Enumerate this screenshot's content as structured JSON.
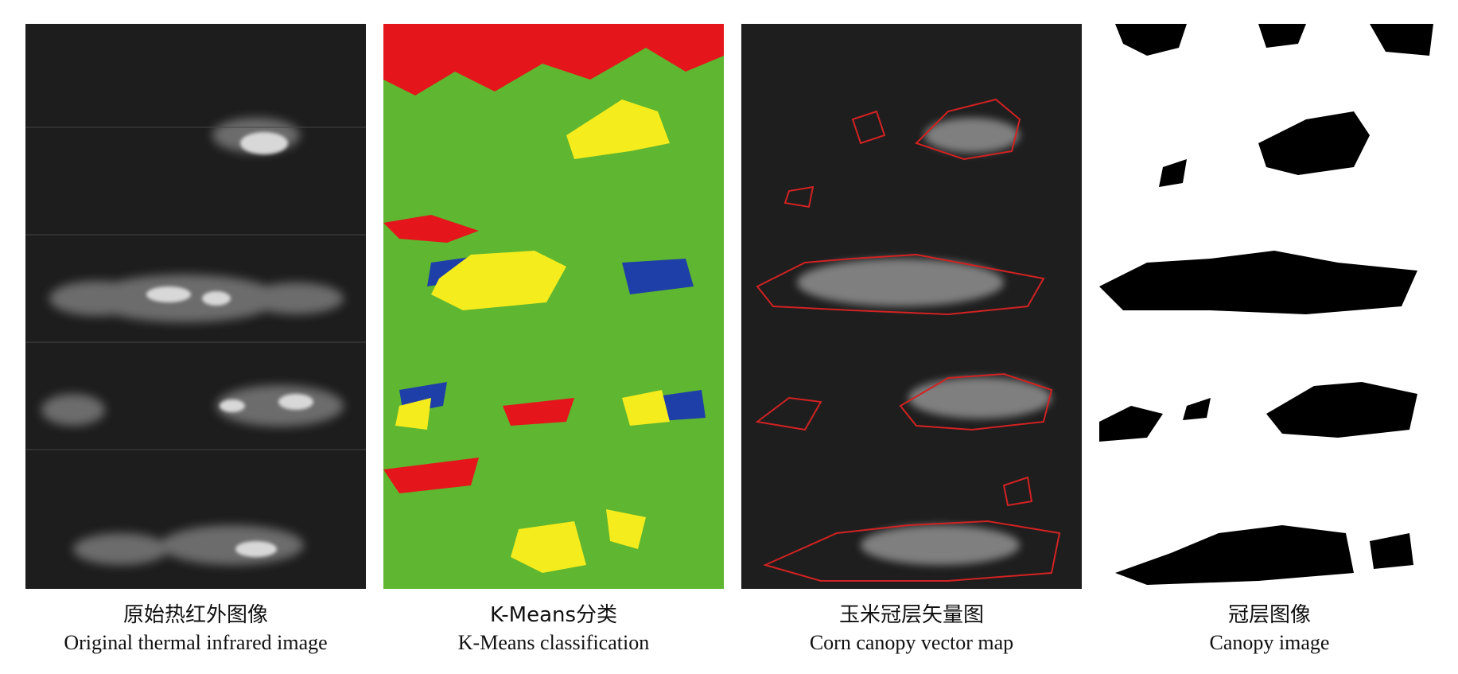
{
  "panels": [
    {
      "id": "thermal",
      "caption_cn": "原始热红外图像",
      "caption_en": "Original thermal infrared image"
    },
    {
      "id": "kmeans",
      "caption_cn": "K-Means分类",
      "caption_en": "K-Means classification"
    },
    {
      "id": "vector",
      "caption_cn": "玉米冠层矢量图",
      "caption_en": "Corn canopy vector map"
    },
    {
      "id": "canopy",
      "caption_cn": "冠层图像",
      "caption_en": "Canopy image"
    }
  ],
  "colors": {
    "kmeans_background": "#5fb630",
    "kmeans_canopy": "#f4ec1d",
    "kmeans_class_red": "#e4161b",
    "kmeans_class_blue": "#1f3fa8",
    "vector_outline": "#d22222",
    "thermal_background": "#1d1d1d"
  }
}
